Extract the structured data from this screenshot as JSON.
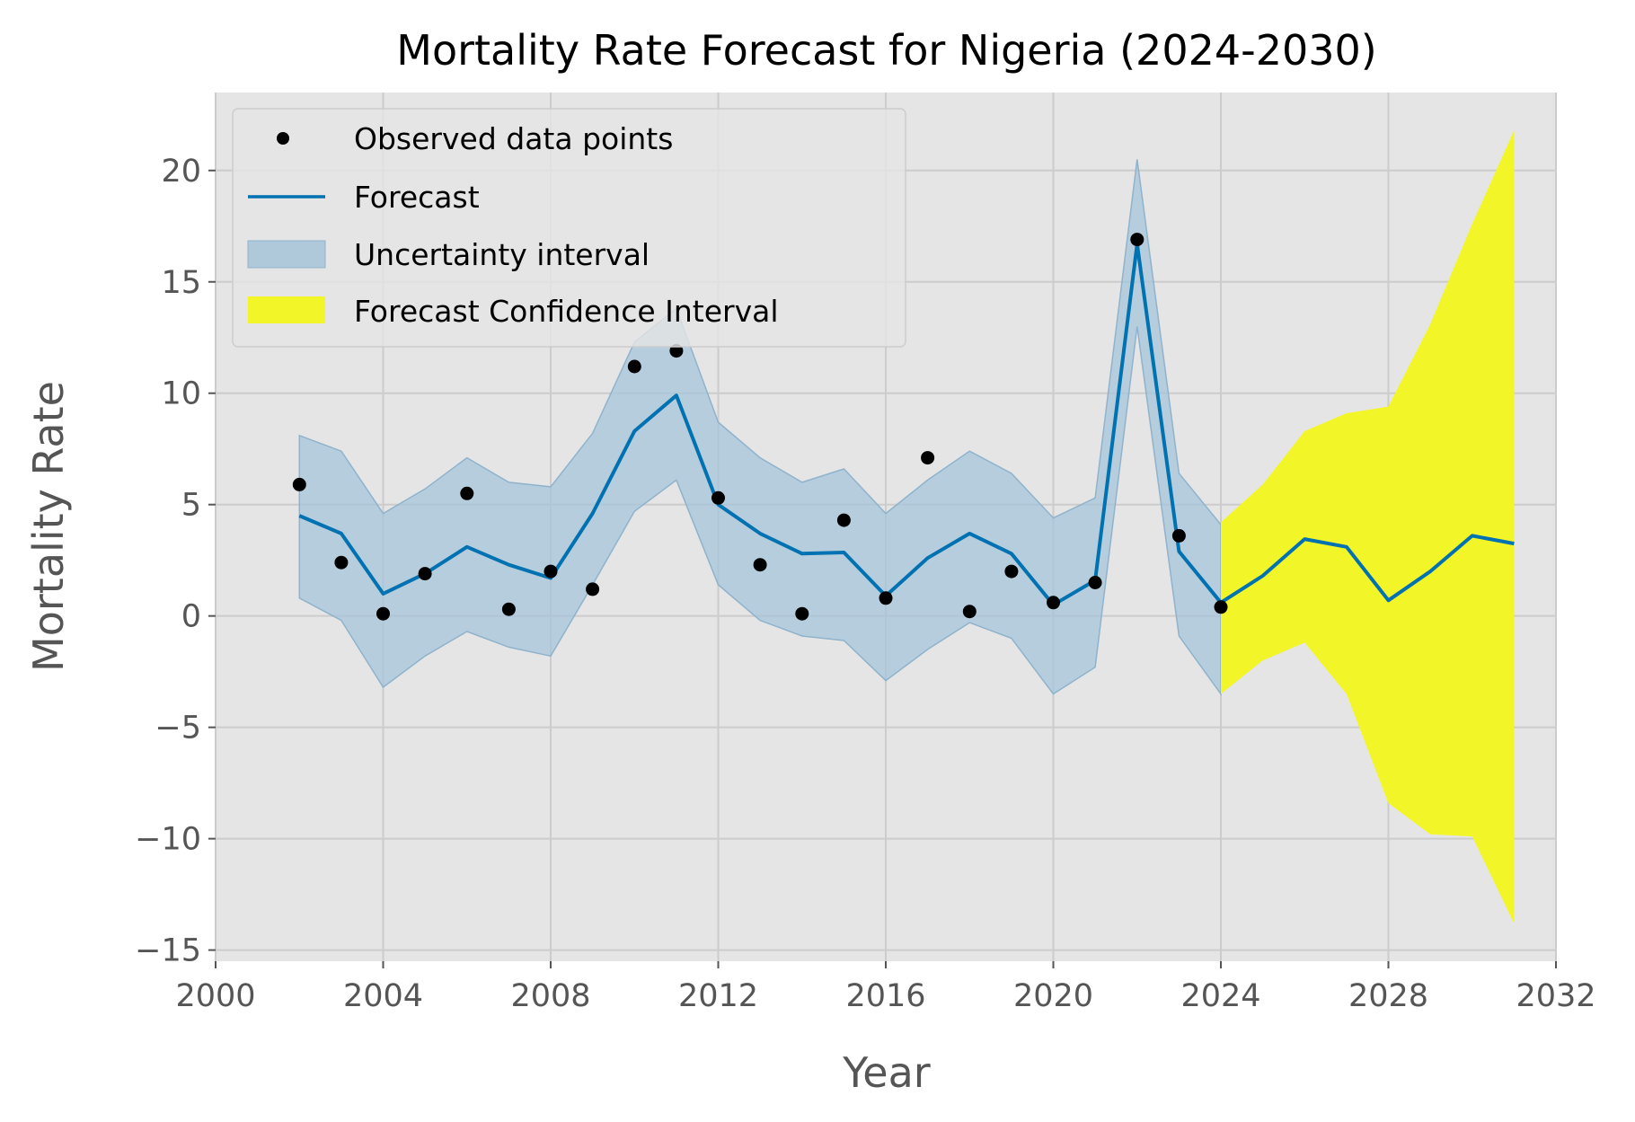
{
  "chart_data": {
    "type": "line",
    "title": "Mortality Rate Forecast for Nigeria (2024-2030)",
    "xlabel": "Year",
    "ylabel": "Mortality Rate",
    "xlim": [
      2000,
      2032
    ],
    "ylim": [
      -15.5,
      23.5
    ],
    "x_ticks": [
      2000,
      2004,
      2008,
      2012,
      2016,
      2020,
      2024,
      2028,
      2032
    ],
    "y_ticks": [
      -15,
      -10,
      -5,
      0,
      5,
      10,
      15,
      20
    ],
    "x_tick_labels": [
      "2000",
      "2004",
      "2008",
      "2012",
      "2016",
      "2020",
      "2024",
      "2028",
      "2032"
    ],
    "y_tick_labels": [
      "−15",
      "−10",
      "−5",
      "0",
      "5",
      "10",
      "15",
      "20"
    ],
    "grid": true,
    "legend_position": "top-left",
    "legend": [
      {
        "label": "Observed data points",
        "kind": "marker",
        "color": "#000000"
      },
      {
        "label": "Forecast",
        "kind": "line",
        "color": "#0072B2"
      },
      {
        "label": "Uncertainty interval",
        "kind": "patch",
        "color": "#0072B2"
      },
      {
        "label": "Forecast Confidence Interval",
        "kind": "patch",
        "color": "#FFFF00"
      }
    ],
    "colors": {
      "background": "#E5E5E5",
      "grid": "#CCCCCC",
      "forecast_line": "#0072B2",
      "uncertainty_fill": "#A6C4D9",
      "confidence_fill": "#F2F528",
      "observed": "#000000"
    },
    "series": [
      {
        "name": "Observed data points",
        "kind": "scatter",
        "x": [
          2002,
          2003,
          2004,
          2005,
          2006,
          2007,
          2008,
          2009,
          2010,
          2011,
          2012,
          2013,
          2014,
          2015,
          2016,
          2017,
          2018,
          2019,
          2020,
          2021,
          2022,
          2023,
          2024
        ],
        "y": [
          5.9,
          2.4,
          0.1,
          1.9,
          5.5,
          0.3,
          2.0,
          1.2,
          11.2,
          11.9,
          5.3,
          2.3,
          0.1,
          4.3,
          0.8,
          7.1,
          0.2,
          2.0,
          0.6,
          1.5,
          16.9,
          3.6,
          0.4
        ]
      },
      {
        "name": "Forecast",
        "kind": "line",
        "x": [
          2002,
          2003,
          2004,
          2005,
          2006,
          2007,
          2008,
          2009,
          2010,
          2011,
          2012,
          2013,
          2014,
          2015,
          2016,
          2017,
          2018,
          2019,
          2020,
          2021,
          2022,
          2023,
          2024,
          2025,
          2026,
          2027,
          2028,
          2029,
          2030,
          2031
        ],
        "y": [
          4.5,
          3.7,
          1.0,
          1.9,
          3.1,
          2.3,
          1.7,
          4.6,
          8.3,
          9.9,
          5.0,
          3.7,
          2.8,
          2.85,
          0.9,
          2.6,
          3.7,
          2.8,
          0.5,
          1.6,
          16.7,
          2.9,
          0.6,
          1.8,
          3.45,
          3.1,
          0.7,
          2.0,
          3.6,
          3.25
        ]
      },
      {
        "name": "Uncertainty interval",
        "kind": "band",
        "x": [
          2002,
          2003,
          2004,
          2005,
          2006,
          2007,
          2008,
          2009,
          2010,
          2011,
          2012,
          2013,
          2014,
          2015,
          2016,
          2017,
          2018,
          2019,
          2020,
          2021,
          2022,
          2023,
          2024
        ],
        "lower": [
          0.8,
          -0.2,
          -3.2,
          -1.8,
          -0.7,
          -1.4,
          -1.8,
          1.4,
          4.7,
          6.1,
          1.4,
          -0.2,
          -0.9,
          -1.1,
          -2.9,
          -1.5,
          -0.3,
          -1.0,
          -3.5,
          -2.3,
          13.0,
          -0.9,
          -3.5
        ],
        "upper": [
          8.1,
          7.4,
          4.6,
          5.7,
          7.1,
          6.0,
          5.8,
          8.2,
          12.3,
          13.8,
          8.7,
          7.1,
          6.0,
          6.6,
          4.6,
          6.1,
          7.4,
          6.4,
          4.4,
          5.3,
          20.5,
          6.4,
          4.1
        ]
      },
      {
        "name": "Forecast Confidence Interval",
        "kind": "band",
        "x": [
          2024,
          2025,
          2026,
          2027,
          2028,
          2029,
          2030,
          2031
        ],
        "lower": [
          -3.5,
          -2.0,
          -1.2,
          -3.5,
          -8.4,
          -9.8,
          -9.9,
          -13.8
        ],
        "upper": [
          4.2,
          5.9,
          8.3,
          9.1,
          9.4,
          13.1,
          17.6,
          21.8
        ]
      }
    ]
  }
}
